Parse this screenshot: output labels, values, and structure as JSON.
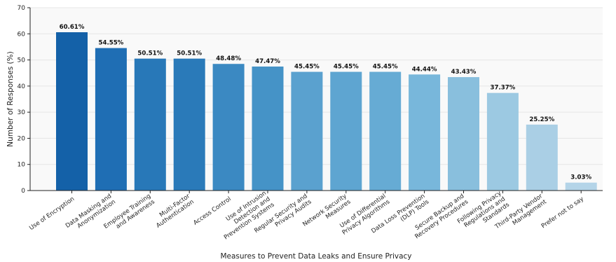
{
  "chart_data": {
    "type": "bar",
    "title": "",
    "xlabel": "Measures to Prevent Data Leaks and Ensure Privacy",
    "ylabel": "Number of Responses (%)",
    "ylim": [
      0,
      70
    ],
    "yticks": [
      0,
      10,
      20,
      30,
      40,
      50,
      60,
      70
    ],
    "grid": "horizontal",
    "legend": "none",
    "categories": [
      [
        "Use of Encryption"
      ],
      [
        "Data Masking and",
        "Anonymization"
      ],
      [
        "Employee Training",
        "and Awareness"
      ],
      [
        "Multi-Factor",
        "Authentication"
      ],
      [
        "Access Control"
      ],
      [
        "Use of Intrusion",
        "Detection and",
        "Prevention Systems"
      ],
      [
        "Regular Security and",
        "Privacy Audits"
      ],
      [
        "Network Security",
        "Measures"
      ],
      [
        "Use of Differential",
        "Privacy Algorithms"
      ],
      [
        "Data Loss Prevention",
        "(DLP) Tools"
      ],
      [
        "Secure Backup and",
        "Recovery Procedures"
      ],
      [
        "Following Privacy",
        "Regulations and",
        "Standards"
      ],
      [
        "Third-Party Vendor",
        "Management"
      ],
      [
        "Prefer not to say"
      ]
    ],
    "values": [
      60.61,
      54.55,
      50.51,
      50.51,
      48.48,
      47.47,
      45.45,
      45.45,
      45.45,
      44.44,
      43.43,
      37.37,
      25.25,
      3.03
    ],
    "data_labels": [
      "60.61%",
      "54.55%",
      "50.51%",
      "50.51%",
      "48.48%",
      "47.47%",
      "45.45%",
      "45.45%",
      "45.45%",
      "44.44%",
      "43.43%",
      "37.37%",
      "25.25%",
      "3.03%"
    ],
    "colors": [
      "#1461a8",
      "#1f6eb4",
      "#2878b8",
      "#2a7ab9",
      "#3b89c2",
      "#4593c7",
      "#5aa1cf",
      "#5ea5d1",
      "#66abd4",
      "#78b7db",
      "#89bfdd",
      "#9cc9e2",
      "#aacfe5",
      "#b4d4e8"
    ]
  }
}
